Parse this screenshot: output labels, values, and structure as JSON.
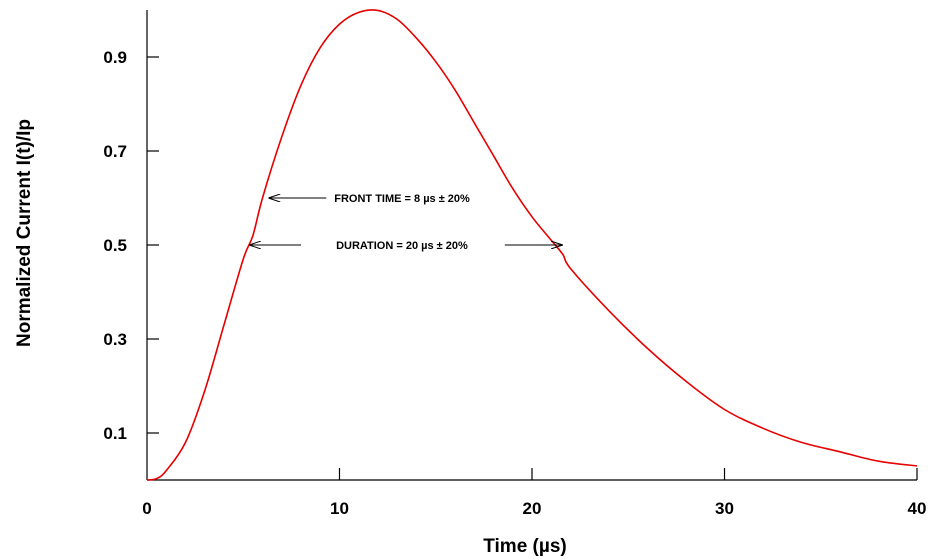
{
  "chart_data": {
    "type": "line",
    "xlabel": "Time (µs)",
    "ylabel": "Normalized Current I(t)/Ip",
    "xlim": [
      0,
      40
    ],
    "ylim": [
      0,
      1.0
    ],
    "x_ticks": [
      0,
      10,
      20,
      30,
      40
    ],
    "y_ticks": [
      0.1,
      0.3,
      0.5,
      0.7,
      0.9
    ],
    "grid": false,
    "series": [
      {
        "color": "#e60000",
        "x": [
          0,
          0.5,
          1,
          2,
          3,
          4,
          5,
          5.5,
          6,
          7,
          8,
          9,
          10,
          11,
          12,
          13,
          14,
          15,
          16,
          17,
          18,
          19,
          20,
          21,
          21.6,
          22,
          24,
          26,
          28,
          30,
          32,
          34,
          36,
          38,
          40
        ],
        "y": [
          0.0,
          0.003,
          0.02,
          0.08,
          0.19,
          0.33,
          0.47,
          0.52,
          0.6,
          0.73,
          0.84,
          0.92,
          0.97,
          0.995,
          0.999,
          0.98,
          0.94,
          0.89,
          0.83,
          0.76,
          0.69,
          0.62,
          0.56,
          0.51,
          0.48,
          0.45,
          0.36,
          0.28,
          0.21,
          0.15,
          0.11,
          0.08,
          0.06,
          0.04,
          0.03
        ]
      }
    ],
    "annotations": [
      {
        "text": "FRONT TIME = 8 µs ± 20%",
        "arrow_to": [
          6.3,
          0.6
        ]
      },
      {
        "text": "DURATION = 20 µs ± 20%",
        "from": [
          5.3,
          0.5
        ],
        "to": [
          21.6,
          0.5
        ]
      }
    ]
  }
}
